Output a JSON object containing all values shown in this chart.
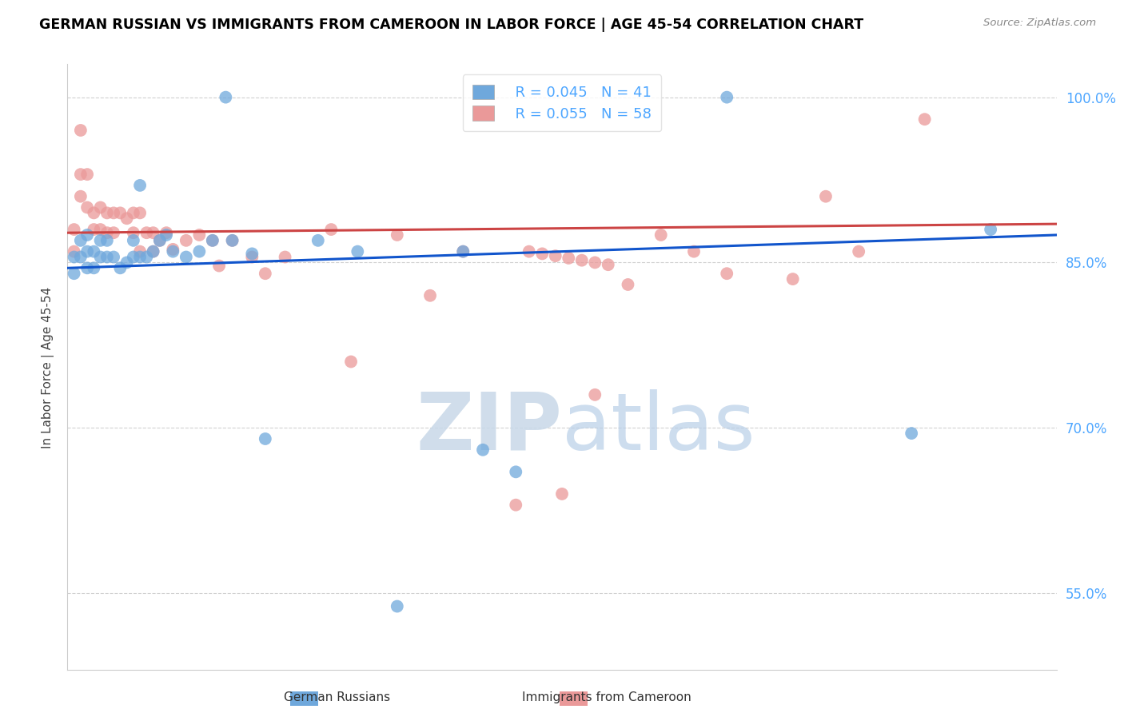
{
  "title": "GERMAN RUSSIAN VS IMMIGRANTS FROM CAMEROON IN LABOR FORCE | AGE 45-54 CORRELATION CHART",
  "source": "Source: ZipAtlas.com",
  "ylabel": "In Labor Force | Age 45-54",
  "xlim": [
    0.0,
    0.15
  ],
  "ylim": [
    0.48,
    1.03
  ],
  "y_tick_vals": [
    0.55,
    0.7,
    0.85,
    1.0
  ],
  "y_tick_labels": [
    "55.0%",
    "70.0%",
    "85.0%",
    "100.0%"
  ],
  "legend_blue_label": "German Russians",
  "legend_pink_label": "Immigrants from Cameroon",
  "legend_blue_R": "R = 0.045",
  "legend_blue_N": "N = 41",
  "legend_pink_R": "R = 0.055",
  "legend_pink_N": "N = 58",
  "blue_color": "#6fa8dc",
  "pink_color": "#ea9999",
  "blue_line_color": "#1155cc",
  "pink_line_color": "#cc4444",
  "watermark_color": "#ddeeff",
  "blue_points_x": [
    0.001,
    0.001,
    0.002,
    0.002,
    0.003,
    0.003,
    0.003,
    0.004,
    0.004,
    0.005,
    0.005,
    0.006,
    0.006,
    0.007,
    0.008,
    0.009,
    0.01,
    0.01,
    0.011,
    0.011,
    0.012,
    0.013,
    0.014,
    0.015,
    0.016,
    0.018,
    0.02,
    0.022,
    0.024,
    0.025,
    0.028,
    0.03,
    0.038,
    0.044,
    0.05,
    0.06,
    0.063,
    0.068,
    0.1,
    0.128,
    0.14
  ],
  "blue_points_y": [
    0.855,
    0.84,
    0.87,
    0.855,
    0.875,
    0.86,
    0.845,
    0.86,
    0.845,
    0.87,
    0.855,
    0.87,
    0.855,
    0.855,
    0.845,
    0.85,
    0.87,
    0.855,
    0.92,
    0.855,
    0.855,
    0.86,
    0.87,
    0.875,
    0.86,
    0.855,
    0.86,
    0.87,
    1.0,
    0.87,
    0.858,
    0.69,
    0.87,
    0.86,
    0.538,
    0.86,
    0.68,
    0.66,
    1.0,
    0.695,
    0.88
  ],
  "pink_points_x": [
    0.001,
    0.001,
    0.002,
    0.002,
    0.002,
    0.003,
    0.003,
    0.004,
    0.004,
    0.005,
    0.005,
    0.006,
    0.006,
    0.007,
    0.007,
    0.008,
    0.009,
    0.01,
    0.01,
    0.011,
    0.011,
    0.012,
    0.013,
    0.013,
    0.014,
    0.015,
    0.016,
    0.018,
    0.02,
    0.022,
    0.023,
    0.025,
    0.028,
    0.03,
    0.033,
    0.04,
    0.043,
    0.05,
    0.055,
    0.06,
    0.068,
    0.075,
    0.08,
    0.085,
    0.09,
    0.095,
    0.1,
    0.11,
    0.115,
    0.12,
    0.07,
    0.072,
    0.074,
    0.076,
    0.078,
    0.08,
    0.082,
    0.13
  ],
  "pink_points_y": [
    0.88,
    0.86,
    0.97,
    0.93,
    0.91,
    0.93,
    0.9,
    0.895,
    0.88,
    0.9,
    0.88,
    0.895,
    0.877,
    0.895,
    0.877,
    0.895,
    0.89,
    0.895,
    0.877,
    0.86,
    0.895,
    0.877,
    0.877,
    0.86,
    0.87,
    0.877,
    0.862,
    0.87,
    0.875,
    0.87,
    0.847,
    0.87,
    0.855,
    0.84,
    0.855,
    0.88,
    0.76,
    0.875,
    0.82,
    0.86,
    0.63,
    0.64,
    0.73,
    0.83,
    0.875,
    0.86,
    0.84,
    0.835,
    0.91,
    0.86,
    0.86,
    0.858,
    0.856,
    0.854,
    0.852,
    0.85,
    0.848,
    0.98
  ],
  "background_color": "#ffffff",
  "grid_color": "#cccccc",
  "title_color": "#000000",
  "right_tick_color": "#4da6ff"
}
